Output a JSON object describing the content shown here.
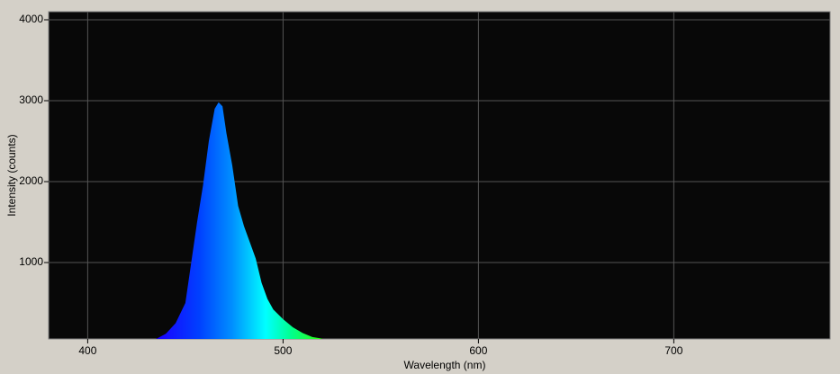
{
  "chart_data": {
    "type": "area",
    "x_label": "Wavelength (nm)",
    "y_label": "Intensity (counts)",
    "x": [
      435,
      440,
      445,
      450,
      453,
      456,
      459,
      462,
      465,
      467,
      469,
      471,
      474,
      477,
      480,
      483,
      486,
      489,
      492,
      495,
      500,
      505,
      510,
      515,
      520
    ],
    "values": [
      56,
      120,
      250,
      500,
      1000,
      1500,
      1950,
      2500,
      2900,
      2980,
      2930,
      2600,
      2200,
      1700,
      1450,
      1250,
      1050,
      750,
      550,
      420,
      300,
      200,
      130,
      80,
      60
    ],
    "xlim": [
      380,
      780
    ],
    "ylim": [
      56,
      4100
    ],
    "xticks": [
      400,
      500,
      600,
      700
    ],
    "yticks": [
      1000,
      2000,
      3000,
      4000
    ],
    "grid": true
  }
}
